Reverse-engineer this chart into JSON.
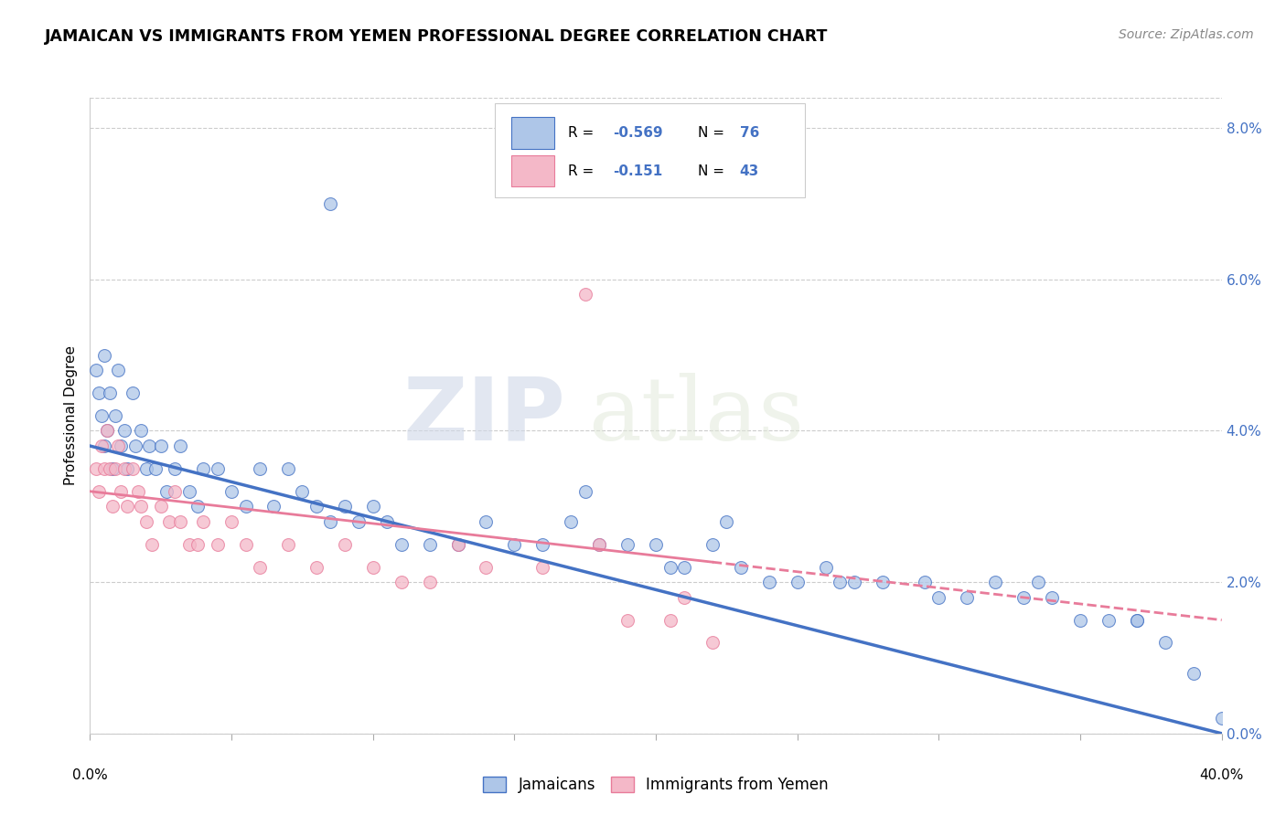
{
  "title": "JAMAICAN VS IMMIGRANTS FROM YEMEN PROFESSIONAL DEGREE CORRELATION CHART",
  "source": "Source: ZipAtlas.com",
  "ylabel": "Professional Degree",
  "right_yticks": [
    "0.0%",
    "2.0%",
    "4.0%",
    "6.0%",
    "8.0%"
  ],
  "right_ytick_vals": [
    0.0,
    2.0,
    4.0,
    6.0,
    8.0
  ],
  "color_blue": "#aec6e8",
  "color_pink": "#f4b8c8",
  "line_blue": "#4472c4",
  "line_pink": "#e87b9a",
  "watermark_zip": "ZIP",
  "watermark_atlas": "atlas",
  "xlim": [
    0,
    40
  ],
  "ylim": [
    0,
    8.4
  ],
  "blue_line_x0": 0,
  "blue_line_y0": 3.8,
  "blue_line_x1": 40,
  "blue_line_y1": 0.0,
  "pink_line_x0": 0,
  "pink_line_y0": 3.2,
  "pink_line_x1": 40,
  "pink_line_y1": 1.5,
  "blue_scatter_x": [
    0.2,
    0.3,
    0.4,
    0.5,
    0.5,
    0.6,
    0.7,
    0.8,
    0.9,
    1.0,
    1.1,
    1.2,
    1.3,
    1.5,
    1.6,
    1.8,
    2.0,
    2.1,
    2.3,
    2.5,
    2.7,
    3.0,
    3.2,
    3.5,
    3.8,
    4.0,
    4.5,
    5.0,
    5.5,
    6.0,
    6.5,
    7.0,
    7.5,
    8.0,
    8.5,
    9.0,
    9.5,
    10.0,
    10.5,
    11.0,
    12.0,
    13.0,
    14.0,
    15.0,
    16.0,
    17.0,
    18.0,
    19.0,
    20.0,
    21.0,
    22.0,
    23.0,
    24.0,
    25.0,
    26.0,
    27.0,
    28.0,
    30.0,
    31.0,
    32.0,
    33.0,
    34.0,
    35.0,
    36.0,
    37.0,
    38.0,
    39.0,
    40.0,
    8.5,
    17.5,
    20.5,
    22.5,
    26.5,
    29.5,
    33.5,
    37.0
  ],
  "blue_scatter_y": [
    4.8,
    4.5,
    4.2,
    5.0,
    3.8,
    4.0,
    4.5,
    3.5,
    4.2,
    4.8,
    3.8,
    4.0,
    3.5,
    4.5,
    3.8,
    4.0,
    3.5,
    3.8,
    3.5,
    3.8,
    3.2,
    3.5,
    3.8,
    3.2,
    3.0,
    3.5,
    3.5,
    3.2,
    3.0,
    3.5,
    3.0,
    3.5,
    3.2,
    3.0,
    2.8,
    3.0,
    2.8,
    3.0,
    2.8,
    2.5,
    2.5,
    2.5,
    2.8,
    2.5,
    2.5,
    2.8,
    2.5,
    2.5,
    2.5,
    2.2,
    2.5,
    2.2,
    2.0,
    2.0,
    2.2,
    2.0,
    2.0,
    1.8,
    1.8,
    2.0,
    1.8,
    1.8,
    1.5,
    1.5,
    1.5,
    1.2,
    0.8,
    0.2,
    7.0,
    3.2,
    2.2,
    2.8,
    2.0,
    2.0,
    2.0,
    1.5
  ],
  "pink_scatter_x": [
    0.2,
    0.3,
    0.4,
    0.5,
    0.6,
    0.7,
    0.8,
    0.9,
    1.0,
    1.1,
    1.2,
    1.3,
    1.5,
    1.7,
    1.8,
    2.0,
    2.2,
    2.5,
    2.8,
    3.0,
    3.2,
    3.5,
    3.8,
    4.0,
    4.5,
    5.0,
    5.5,
    6.0,
    7.0,
    8.0,
    9.0,
    10.0,
    11.0,
    12.0,
    13.0,
    14.0,
    16.0,
    17.5,
    18.0,
    19.0,
    20.5,
    21.0,
    22.0
  ],
  "pink_scatter_y": [
    3.5,
    3.2,
    3.8,
    3.5,
    4.0,
    3.5,
    3.0,
    3.5,
    3.8,
    3.2,
    3.5,
    3.0,
    3.5,
    3.2,
    3.0,
    2.8,
    2.5,
    3.0,
    2.8,
    3.2,
    2.8,
    2.5,
    2.5,
    2.8,
    2.5,
    2.8,
    2.5,
    2.2,
    2.5,
    2.2,
    2.5,
    2.2,
    2.0,
    2.0,
    2.5,
    2.2,
    2.2,
    5.8,
    2.5,
    1.5,
    1.5,
    1.8,
    1.2
  ]
}
